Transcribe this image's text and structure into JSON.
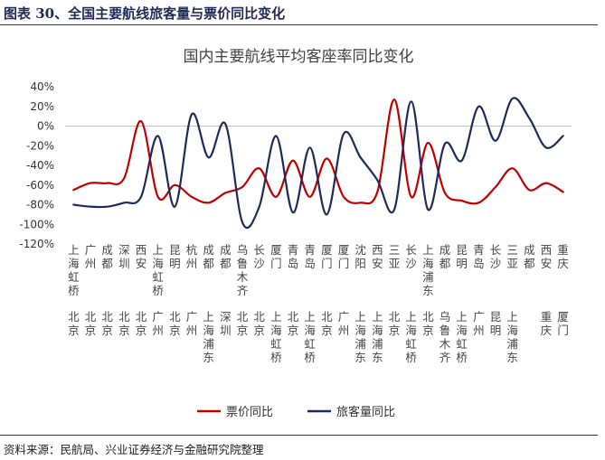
{
  "header": {
    "figure_title": "图表 30、全国主要航线旅客量与票价同比变化"
  },
  "footer": {
    "source": "资料来源：民航局、兴业证券经济与金融研究院整理"
  },
  "chart_data": {
    "type": "line",
    "title": "国内主要航线平均客座率同比变化",
    "ylim": [
      -120,
      40
    ],
    "yticks": [
      40,
      20,
      0,
      -20,
      -40,
      -60,
      -80,
      -100,
      -120
    ],
    "ytick_labels": [
      "40%",
      "20%",
      "0%",
      "-20%",
      "-40%",
      "-60%",
      "-80%",
      "-100%",
      "-120%"
    ],
    "grid": false,
    "legend_position": "bottom",
    "categories": [
      {
        "upper": "上海虹桥",
        "lower": "北京"
      },
      {
        "upper": "广州",
        "lower": "北京"
      },
      {
        "upper": "成都",
        "lower": "北京"
      },
      {
        "upper": "深圳",
        "lower": "北京"
      },
      {
        "upper": "西安",
        "lower": "北京"
      },
      {
        "upper": "上海虹桥",
        "lower": "广州"
      },
      {
        "upper": "昆明",
        "lower": "北京"
      },
      {
        "upper": "杭州",
        "lower": "广州"
      },
      {
        "upper": "成都",
        "lower": "上海浦东"
      },
      {
        "upper": "成都",
        "lower": "深圳"
      },
      {
        "upper": "乌鲁木齐",
        "lower": "北京"
      },
      {
        "upper": "长沙",
        "lower": "北京"
      },
      {
        "upper": "厦门",
        "lower": "上海虹桥"
      },
      {
        "upper": "青岛",
        "lower": "北京"
      },
      {
        "upper": "青岛",
        "lower": "上海虹桥"
      },
      {
        "upper": "厦门",
        "lower": "北京"
      },
      {
        "upper": "厦门",
        "lower": "广州"
      },
      {
        "upper": "沈阳",
        "lower": "上海浦东"
      },
      {
        "upper": "西安",
        "lower": "上海浦东"
      },
      {
        "upper": "三亚",
        "lower": "北京"
      },
      {
        "upper": "长沙",
        "lower": "上海虹桥"
      },
      {
        "upper": "上海浦东",
        "lower": "北京"
      },
      {
        "upper": "成都",
        "lower": "乌鲁木齐"
      },
      {
        "upper": "昆明",
        "lower": "上海虹桥"
      },
      {
        "upper": "青岛",
        "lower": "广州"
      },
      {
        "upper": "长沙",
        "lower": "昆明"
      },
      {
        "upper": "三亚",
        "lower": "上海浦东"
      },
      {
        "upper": "成都",
        "lower": ""
      },
      {
        "upper": "西安",
        "lower": "重庆"
      },
      {
        "upper": "重庆",
        "lower": "厦门"
      }
    ],
    "series": [
      {
        "name": "票价同比",
        "color": "#c00000",
        "values": [
          -65,
          -58,
          -58,
          -53,
          5,
          -72,
          -60,
          -72,
          -78,
          -68,
          -62,
          -43,
          -72,
          -35,
          -72,
          -33,
          -72,
          -78,
          -67,
          27,
          -72,
          -17,
          -68,
          -76,
          -78,
          -62,
          -43,
          -65,
          -58,
          -67
        ]
      },
      {
        "name": "旅客量同比",
        "color": "#1f2a5c",
        "values": [
          -80,
          -82,
          -82,
          -78,
          -72,
          -10,
          -82,
          12,
          -32,
          2,
          -98,
          -82,
          -10,
          -88,
          -22,
          -90,
          -8,
          -32,
          -55,
          -85,
          25,
          -85,
          -18,
          -35,
          20,
          -15,
          28,
          8,
          -22,
          -10
        ]
      }
    ]
  }
}
